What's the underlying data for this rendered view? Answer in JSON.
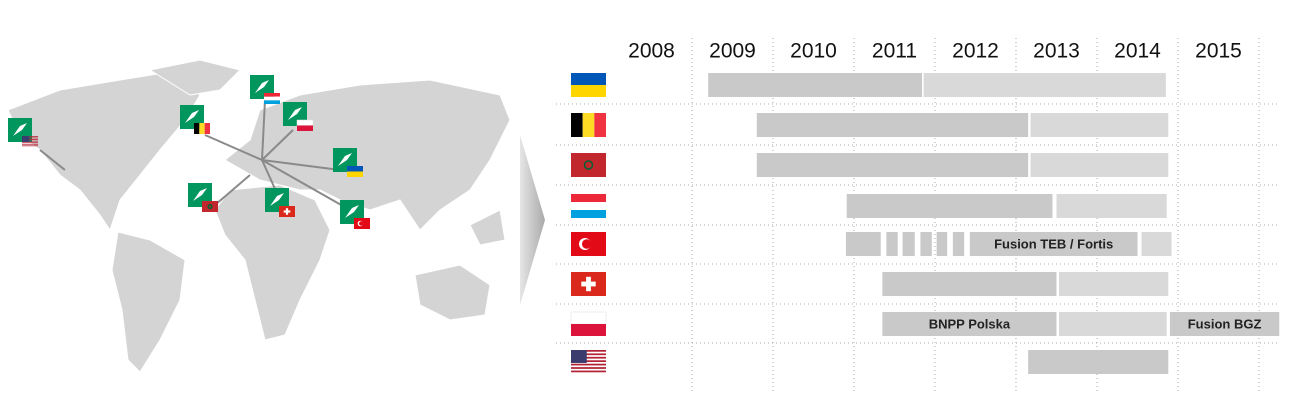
{
  "timeline": {
    "years": [
      2008,
      2009,
      2010,
      2011,
      2012,
      2013,
      2014,
      2015
    ],
    "xticks": [
      2009,
      2010,
      2011,
      2012,
      2013,
      2014,
      2015,
      2016
    ],
    "xlim": [
      2008,
      2016.3
    ],
    "rows": [
      {
        "segments": [
          {
            "start": 2009.2,
            "end": 2011.84,
            "color": "#c9c9c9"
          },
          {
            "start": 2011.86,
            "end": 2014.85,
            "color": "#d9d9d9"
          }
        ]
      },
      {
        "segments": [
          {
            "start": 2009.8,
            "end": 2013.15,
            "color": "#c9c9c9"
          },
          {
            "start": 2013.18,
            "end": 2014.88,
            "color": "#d9d9d9"
          }
        ]
      },
      {
        "segments": [
          {
            "start": 2009.8,
            "end": 2013.15,
            "color": "#c9c9c9"
          },
          {
            "start": 2013.18,
            "end": 2014.88,
            "color": "#d9d9d9"
          }
        ]
      },
      {
        "segments": [
          {
            "start": 2010.91,
            "end": 2013.45,
            "color": "#c9c9c9"
          },
          {
            "start": 2013.5,
            "end": 2014.86,
            "color": "#d9d9d9"
          }
        ]
      },
      {
        "segments": [
          {
            "start": 2010.9,
            "end": 2011.33,
            "color": "#c9c9c9"
          },
          {
            "start": 2011.4,
            "end": 2011.54,
            "color": "#c9c9c9"
          },
          {
            "start": 2011.6,
            "end": 2011.75,
            "color": "#c9c9c9"
          },
          {
            "start": 2011.82,
            "end": 2011.96,
            "color": "#c9c9c9"
          },
          {
            "start": 2012.02,
            "end": 2012.15,
            "color": "#c9c9c9"
          },
          {
            "start": 2012.22,
            "end": 2012.36,
            "color": "#c9c9c9"
          },
          {
            "start": 2012.43,
            "end": 2014.5,
            "color": "#c9c9c9",
            "label": "Fusion TEB / Fortis"
          },
          {
            "start": 2014.55,
            "end": 2014.92,
            "color": "#d9d9d9"
          }
        ]
      },
      {
        "segments": [
          {
            "start": 2011.35,
            "end": 2013.5,
            "color": "#c9c9c9"
          },
          {
            "start": 2013.53,
            "end": 2014.88,
            "color": "#d9d9d9"
          }
        ]
      },
      {
        "segments": [
          {
            "start": 2011.35,
            "end": 2013.5,
            "color": "#c9c9c9",
            "label": "BNPP Polska"
          },
          {
            "start": 2013.53,
            "end": 2014.86,
            "color": "#d9d9d9"
          },
          {
            "start": 2014.9,
            "end": 2016.25,
            "color": "#c9c9c9",
            "label": "Fusion BGZ"
          }
        ]
      },
      {
        "segments": [
          {
            "start": 2013.15,
            "end": 2014.88,
            "color": "#c9c9c9"
          }
        ]
      }
    ]
  }
}
